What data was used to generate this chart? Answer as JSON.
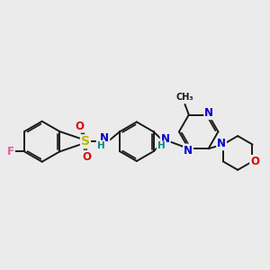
{
  "background_color": "#ebebeb",
  "bond_color": "#1a1a1a",
  "bond_width": 1.4,
  "atom_colors": {
    "F": "#e060a0",
    "S": "#b8b800",
    "O": "#dd0000",
    "N": "#0000cc",
    "H": "#008888",
    "C": "#1a1a1a"
  },
  "font_size": 8.5
}
